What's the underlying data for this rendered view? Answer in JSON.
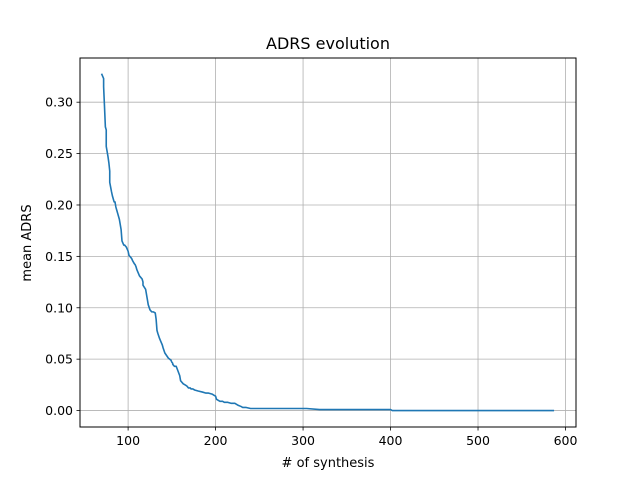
{
  "chart_data": {
    "type": "line",
    "title": "ADRS evolution",
    "xlabel": "# of synthesis",
    "ylabel": "mean ADRS",
    "xlim": [
      45,
      612
    ],
    "ylim": [
      -0.016,
      0.343
    ],
    "xticks": [
      100,
      200,
      300,
      400,
      500,
      600
    ],
    "xtick_labels": [
      "100",
      "200",
      "300",
      "400",
      "500",
      "600"
    ],
    "yticks": [
      0.0,
      0.05,
      0.1,
      0.15,
      0.2,
      0.25,
      0.3
    ],
    "ytick_labels": [
      "0.00",
      "0.05",
      "0.10",
      "0.15",
      "0.20",
      "0.25",
      "0.30"
    ],
    "grid": true,
    "line_color": "#1f77b4",
    "series": [
      {
        "x": [
          70,
          72,
          72,
          73,
          74,
          75,
          75,
          77,
          78,
          79,
          79,
          81,
          82,
          84,
          85,
          86,
          87,
          88,
          90,
          92,
          93,
          95,
          96,
          97,
          98,
          99,
          100,
          101,
          104,
          105,
          107,
          108,
          109,
          110,
          112,
          113,
          114,
          116,
          117,
          117,
          120,
          122,
          123,
          125,
          127,
          129,
          129,
          131,
          132,
          133,
          134,
          136,
          137,
          139,
          140,
          142,
          146,
          149,
          150,
          151,
          151,
          152,
          153,
          155,
          155,
          159,
          160,
          163,
          165,
          167,
          169,
          171,
          172,
          174,
          176,
          180,
          185,
          189,
          192,
          196,
          198,
          200,
          201,
          203,
          205,
          208,
          210,
          214,
          218,
          222,
          226,
          229,
          231,
          235,
          240,
          247,
          260,
          272,
          283,
          300,
          304,
          319,
          320,
          330,
          335,
          338,
          354,
          358,
          370,
          376,
          385,
          393,
          395,
          400,
          402,
          407,
          422,
          437,
          447,
          452,
          474,
          481,
          485,
          493,
          511,
          521,
          586
        ],
        "y": [
          0.327,
          0.323,
          0.315,
          0.296,
          0.276,
          0.273,
          0.257,
          0.247,
          0.241,
          0.233,
          0.222,
          0.213,
          0.209,
          0.203,
          0.203,
          0.198,
          0.195,
          0.192,
          0.186,
          0.176,
          0.165,
          0.161,
          0.161,
          0.16,
          0.159,
          0.157,
          0.155,
          0.151,
          0.148,
          0.146,
          0.143,
          0.142,
          0.14,
          0.137,
          0.133,
          0.131,
          0.13,
          0.128,
          0.125,
          0.122,
          0.118,
          0.108,
          0.103,
          0.098,
          0.096,
          0.096,
          0.096,
          0.095,
          0.089,
          0.078,
          0.075,
          0.07,
          0.068,
          0.064,
          0.061,
          0.056,
          0.051,
          0.049,
          0.047,
          0.046,
          0.045,
          0.044,
          0.043,
          0.043,
          0.043,
          0.034,
          0.029,
          0.026,
          0.025,
          0.024,
          0.022,
          0.022,
          0.021,
          0.021,
          0.02,
          0.019,
          0.018,
          0.017,
          0.017,
          0.016,
          0.015,
          0.014,
          0.011,
          0.01,
          0.009,
          0.009,
          0.008,
          0.008,
          0.007,
          0.007,
          0.005,
          0.004,
          0.003,
          0.003,
          0.002,
          0.002,
          0.002,
          0.002,
          0.002,
          0.002,
          0.002,
          0.001,
          0.001,
          0.001,
          0.001,
          0.001,
          0.001,
          0.001,
          0.001,
          0.001,
          0.001,
          0.001,
          0.001,
          0.001,
          0.0,
          0.0,
          0.0,
          0.0,
          0.0,
          0.0,
          0.0,
          0.0,
          0.0,
          0.0,
          0.0,
          0.0,
          0.0
        ]
      }
    ]
  }
}
